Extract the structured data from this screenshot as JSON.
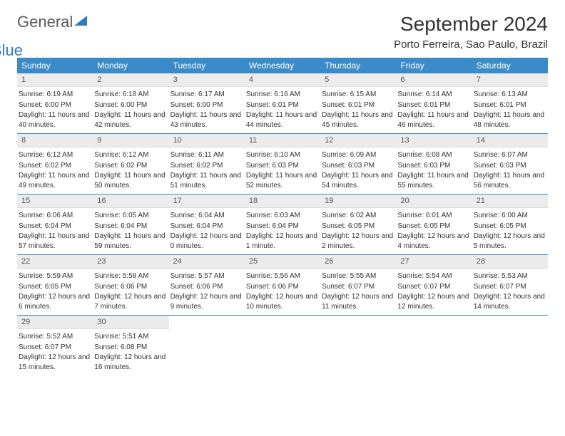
{
  "brand": {
    "part1": "General",
    "part2": "Blue"
  },
  "title": "September 2024",
  "location": "Porto Ferreira, Sao Paulo, Brazil",
  "colors": {
    "header_bg": "#3a8bc9",
    "header_text": "#ffffff",
    "daynum_bg": "#ececec",
    "border": "#3a8bc9",
    "text": "#333333",
    "logo_gray": "#5a5a5a",
    "logo_blue": "#2f7bbf"
  },
  "weekdays": [
    "Sunday",
    "Monday",
    "Tuesday",
    "Wednesday",
    "Thursday",
    "Friday",
    "Saturday"
  ],
  "weeks": [
    [
      {
        "n": "1",
        "sr": "6:19 AM",
        "ss": "6:00 PM",
        "dl": "11 hours and 40 minutes."
      },
      {
        "n": "2",
        "sr": "6:18 AM",
        "ss": "6:00 PM",
        "dl": "11 hours and 42 minutes."
      },
      {
        "n": "3",
        "sr": "6:17 AM",
        "ss": "6:00 PM",
        "dl": "11 hours and 43 minutes."
      },
      {
        "n": "4",
        "sr": "6:16 AM",
        "ss": "6:01 PM",
        "dl": "11 hours and 44 minutes."
      },
      {
        "n": "5",
        "sr": "6:15 AM",
        "ss": "6:01 PM",
        "dl": "11 hours and 45 minutes."
      },
      {
        "n": "6",
        "sr": "6:14 AM",
        "ss": "6:01 PM",
        "dl": "11 hours and 46 minutes."
      },
      {
        "n": "7",
        "sr": "6:13 AM",
        "ss": "6:01 PM",
        "dl": "11 hours and 48 minutes."
      }
    ],
    [
      {
        "n": "8",
        "sr": "6:12 AM",
        "ss": "6:02 PM",
        "dl": "11 hours and 49 minutes."
      },
      {
        "n": "9",
        "sr": "6:12 AM",
        "ss": "6:02 PM",
        "dl": "11 hours and 50 minutes."
      },
      {
        "n": "10",
        "sr": "6:11 AM",
        "ss": "6:02 PM",
        "dl": "11 hours and 51 minutes."
      },
      {
        "n": "11",
        "sr": "6:10 AM",
        "ss": "6:03 PM",
        "dl": "11 hours and 52 minutes."
      },
      {
        "n": "12",
        "sr": "6:09 AM",
        "ss": "6:03 PM",
        "dl": "11 hours and 54 minutes."
      },
      {
        "n": "13",
        "sr": "6:08 AM",
        "ss": "6:03 PM",
        "dl": "11 hours and 55 minutes."
      },
      {
        "n": "14",
        "sr": "6:07 AM",
        "ss": "6:03 PM",
        "dl": "11 hours and 56 minutes."
      }
    ],
    [
      {
        "n": "15",
        "sr": "6:06 AM",
        "ss": "6:04 PM",
        "dl": "11 hours and 57 minutes."
      },
      {
        "n": "16",
        "sr": "6:05 AM",
        "ss": "6:04 PM",
        "dl": "11 hours and 59 minutes."
      },
      {
        "n": "17",
        "sr": "6:04 AM",
        "ss": "6:04 PM",
        "dl": "12 hours and 0 minutes."
      },
      {
        "n": "18",
        "sr": "6:03 AM",
        "ss": "6:04 PM",
        "dl": "12 hours and 1 minute."
      },
      {
        "n": "19",
        "sr": "6:02 AM",
        "ss": "6:05 PM",
        "dl": "12 hours and 2 minutes."
      },
      {
        "n": "20",
        "sr": "6:01 AM",
        "ss": "6:05 PM",
        "dl": "12 hours and 4 minutes."
      },
      {
        "n": "21",
        "sr": "6:00 AM",
        "ss": "6:05 PM",
        "dl": "12 hours and 5 minutes."
      }
    ],
    [
      {
        "n": "22",
        "sr": "5:59 AM",
        "ss": "6:05 PM",
        "dl": "12 hours and 6 minutes."
      },
      {
        "n": "23",
        "sr": "5:58 AM",
        "ss": "6:06 PM",
        "dl": "12 hours and 7 minutes."
      },
      {
        "n": "24",
        "sr": "5:57 AM",
        "ss": "6:06 PM",
        "dl": "12 hours and 9 minutes."
      },
      {
        "n": "25",
        "sr": "5:56 AM",
        "ss": "6:06 PM",
        "dl": "12 hours and 10 minutes."
      },
      {
        "n": "26",
        "sr": "5:55 AM",
        "ss": "6:07 PM",
        "dl": "12 hours and 11 minutes."
      },
      {
        "n": "27",
        "sr": "5:54 AM",
        "ss": "6:07 PM",
        "dl": "12 hours and 12 minutes."
      },
      {
        "n": "28",
        "sr": "5:53 AM",
        "ss": "6:07 PM",
        "dl": "12 hours and 14 minutes."
      }
    ],
    [
      {
        "n": "29",
        "sr": "5:52 AM",
        "ss": "6:07 PM",
        "dl": "12 hours and 15 minutes."
      },
      {
        "n": "30",
        "sr": "5:51 AM",
        "ss": "6:08 PM",
        "dl": "12 hours and 16 minutes."
      },
      null,
      null,
      null,
      null,
      null
    ]
  ],
  "labels": {
    "sunrise": "Sunrise:",
    "sunset": "Sunset:",
    "daylight": "Daylight:"
  }
}
